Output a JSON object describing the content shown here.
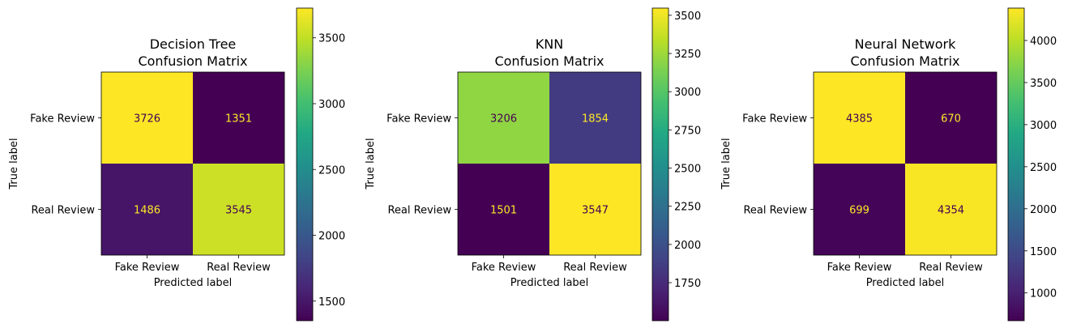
{
  "chart_data": [
    {
      "type": "heatmap",
      "title_lines": [
        "Decision Tree",
        "Confusion Matrix"
      ],
      "xlabel": "Predicted label",
      "ylabel": "True label",
      "x_categories": [
        "Fake Review",
        "Real Review"
      ],
      "y_categories": [
        "Fake Review",
        "Real Review"
      ],
      "matrix": [
        [
          3726,
          1351
        ],
        [
          1486,
          3545
        ]
      ],
      "colormap": "viridis",
      "colorbar": {
        "vmin": 1351,
        "vmax": 3726,
        "ticks": [
          1500,
          2000,
          2500,
          3000,
          3500
        ]
      }
    },
    {
      "type": "heatmap",
      "title_lines": [
        "KNN",
        "Confusion Matrix"
      ],
      "xlabel": "Predicted label",
      "ylabel": "True label",
      "x_categories": [
        "Fake Review",
        "Real Review"
      ],
      "y_categories": [
        "Fake Review",
        "Real Review"
      ],
      "matrix": [
        [
          3206,
          1854
        ],
        [
          1501,
          3547
        ]
      ],
      "colormap": "viridis",
      "colorbar": {
        "vmin": 1501,
        "vmax": 3547,
        "ticks": [
          1750,
          2000,
          2250,
          2500,
          2750,
          3000,
          3250,
          3500
        ]
      }
    },
    {
      "type": "heatmap",
      "title_lines": [
        "Neural Network",
        "Confusion Matrix"
      ],
      "xlabel": "Predicted label",
      "ylabel": "True label",
      "x_categories": [
        "Fake Review",
        "Real Review"
      ],
      "y_categories": [
        "Fake Review",
        "Real Review"
      ],
      "matrix": [
        [
          4385,
          670
        ],
        [
          699,
          4354
        ]
      ],
      "colormap": "viridis",
      "colorbar": {
        "vmin": 670,
        "vmax": 4385,
        "ticks": [
          1000,
          1500,
          2000,
          2500,
          3000,
          3500,
          4000
        ]
      }
    }
  ]
}
